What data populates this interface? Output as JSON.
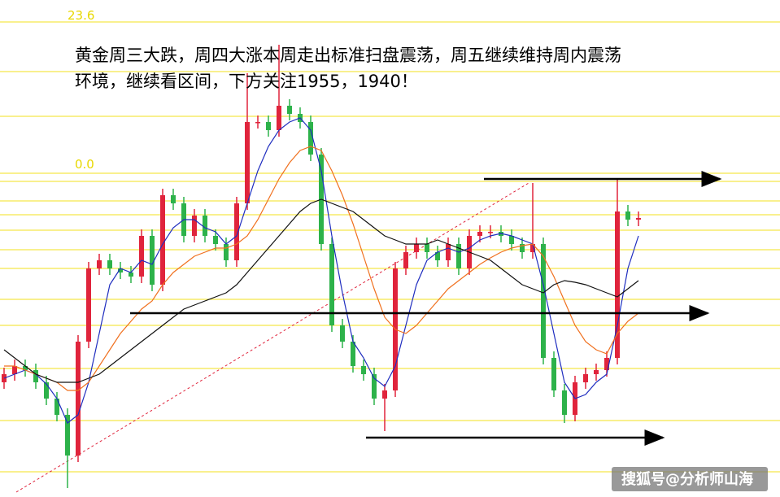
{
  "chart_data": {
    "type": "candlestick",
    "annotation_lines": [
      "黄金周三大跌，周四大涨本周走出标准扫盘震荡，周五继续维持周内震荡",
      "环境，继续看区间，下方关注1955，1940！"
    ],
    "fib_labels": [
      "23.6",
      "0.0"
    ],
    "watermark": "搜狐号@分析师山海",
    "ylim": [
      1931.9,
      1993
    ],
    "up_color": "#e0243c",
    "down_color": "#2db24a",
    "level_color": "#f5e84a",
    "levels": [
      1990.3,
      1984.2,
      1978.7,
      1971.7,
      1970.7,
      1968.3,
      1966.6,
      1964.7,
      1962.3,
      1960.0,
      1956.2,
      1953.0,
      1947.7,
      1941.3,
      1935.0
    ],
    "arrow_levels": [
      1971.0,
      1954.5,
      1939.2
    ],
    "open": [
      1946.0,
      1947.0,
      1948.0,
      1947.5,
      1946.0,
      1944.0,
      1942.0,
      1937.0,
      1951.0,
      1960.0,
      1961.0,
      1960.0,
      1959.5,
      1959.0,
      1964.0,
      1958.0,
      1969.0,
      1968.0,
      1964.0,
      1966.5,
      1964.0,
      1963.0,
      1961.0,
      1968.0,
      1978.0,
      1978.0,
      1977.0,
      1980.0,
      1979.0,
      1978.0,
      1974.0,
      1963.0,
      1953.0,
      1951.0,
      1948.0,
      1947.0,
      1944.0,
      1945.0,
      1960.0,
      1962.0,
      1963.0,
      1962.0,
      1961.0,
      1963.0,
      1960.0,
      1964.0,
      1964.5,
      1964.5,
      1964.0,
      1963.0,
      1962.0,
      1963.0,
      1949.0,
      1945.0,
      1942.0,
      1946.0,
      1947.0,
      1947.5,
      1949.0,
      1967.0,
      1966.0
    ],
    "high": [
      1947.8,
      1948.8,
      1948.8,
      1948.3,
      1946.8,
      1944.8,
      1942.8,
      1951.8,
      1960.8,
      1961.8,
      1961.8,
      1960.8,
      1960.3,
      1964.8,
      1964.8,
      1969.8,
      1969.8,
      1968.8,
      1967.3,
      1967.3,
      1964.8,
      1963.8,
      1968.8,
      1984.0,
      1978.8,
      1978.8,
      1987.5,
      1980.8,
      1979.8,
      1978.8,
      1974.8,
      1963.8,
      1953.8,
      1951.8,
      1948.8,
      1947.8,
      1945.8,
      1960.8,
      1962.8,
      1963.8,
      1963.8,
      1962.8,
      1963.8,
      1963.8,
      1964.8,
      1965.3,
      1965.3,
      1965.3,
      1964.8,
      1963.8,
      1970.5,
      1963.8,
      1949.8,
      1945.8,
      1946.8,
      1947.8,
      1948.3,
      1949.8,
      1971.0,
      1967.8,
      1967.0
    ],
    "low": [
      1945.2,
      1946.2,
      1946.7,
      1945.2,
      1943.2,
      1941.2,
      1933.0,
      1936.2,
      1950.2,
      1959.2,
      1959.2,
      1958.7,
      1958.2,
      1958.2,
      1957.2,
      1957.2,
      1967.2,
      1963.2,
      1963.2,
      1963.2,
      1962.2,
      1960.2,
      1960.2,
      1967.2,
      1977.2,
      1976.2,
      1976.2,
      1978.2,
      1977.2,
      1973.2,
      1962.2,
      1952.2,
      1950.2,
      1947.2,
      1946.2,
      1943.2,
      1940.0,
      1944.2,
      1959.2,
      1961.2,
      1961.2,
      1960.2,
      1960.2,
      1959.2,
      1959.2,
      1963.2,
      1963.7,
      1963.2,
      1962.2,
      1961.2,
      1961.2,
      1948.2,
      1944.2,
      1941.0,
      1941.2,
      1945.2,
      1946.2,
      1946.7,
      1948.2,
      1965.2,
      1965.2
    ],
    "close": [
      1947.0,
      1948.0,
      1947.5,
      1946.0,
      1944.0,
      1942.0,
      1937.0,
      1951.0,
      1960.0,
      1961.0,
      1960.0,
      1959.5,
      1959.0,
      1964.0,
      1958.0,
      1969.0,
      1968.0,
      1964.0,
      1966.5,
      1964.0,
      1963.0,
      1961.0,
      1968.0,
      1978.0,
      1978.0,
      1977.0,
      1980.0,
      1979.0,
      1978.0,
      1974.0,
      1963.0,
      1953.0,
      1951.0,
      1948.0,
      1947.0,
      1944.0,
      1945.0,
      1960.0,
      1962.0,
      1963.0,
      1962.0,
      1961.0,
      1963.0,
      1960.0,
      1964.0,
      1964.5,
      1964.5,
      1964.0,
      1963.0,
      1962.0,
      1963.0,
      1949.0,
      1945.0,
      1942.0,
      1946.0,
      1947.0,
      1947.5,
      1949.0,
      1967.0,
      1966.0,
      1966.2
    ],
    "series": [
      {
        "color": "#1f2dbf",
        "values": [
          1946.5,
          1947,
          1947.5,
          1947,
          1945.8,
          1944,
          1941,
          1942,
          1946,
          1952,
          1958,
          1960,
          1959.5,
          1961,
          1960.5,
          1963,
          1965,
          1966,
          1966,
          1965,
          1964.5,
          1963,
          1964,
          1968,
          1972,
          1975,
          1977,
          1978,
          1978.5,
          1977,
          1972,
          1964,
          1957,
          1951,
          1949,
          1946.5,
          1945.5,
          1948,
          1953,
          1958,
          1961,
          1962,
          1962.5,
          1962,
          1962.5,
          1963.5,
          1964,
          1964.3,
          1964,
          1963.5,
          1963,
          1958,
          1952,
          1946,
          1944,
          1944.5,
          1946,
          1947,
          1953,
          1960,
          1964
        ]
      },
      {
        "color": "#f0701e",
        "values": [
          1948,
          1948,
          1947.5,
          1947,
          1946.5,
          1946,
          1945,
          1945,
          1946,
          1948,
          1950,
          1952,
          1953.5,
          1955,
          1956,
          1958,
          1959.5,
          1960.5,
          1961.5,
          1962,
          1962.5,
          1962.5,
          1963,
          1964,
          1966,
          1968.5,
          1971,
          1973,
          1974.5,
          1975,
          1974.5,
          1972,
          1969,
          1965.5,
          1961.5,
          1957.5,
          1954,
          1952.5,
          1952,
          1953,
          1954.5,
          1956,
          1957.5,
          1958.5,
          1959.5,
          1960.5,
          1961.3,
          1962,
          1962.5,
          1962.8,
          1963,
          1961.5,
          1959,
          1956,
          1953,
          1951,
          1950,
          1949.5,
          1952,
          1953.5,
          1954.5
        ]
      },
      {
        "color": "#111111",
        "values": [
          1950,
          1949,
          1948,
          1947,
          1946.5,
          1946,
          1946,
          1946,
          1946.5,
          1947,
          1948,
          1949,
          1950,
          1951,
          1952,
          1953,
          1954,
          1955,
          1955.5,
          1956,
          1956.5,
          1957,
          1958,
          1959.5,
          1961,
          1962.5,
          1964,
          1965.5,
          1967,
          1968,
          1968.5,
          1968,
          1967.5,
          1967,
          1966,
          1965,
          1964,
          1963.5,
          1963,
          1963,
          1963,
          1963.5,
          1963,
          1962.5,
          1962,
          1961.5,
          1961,
          1960,
          1959,
          1958,
          1957.5,
          1957,
          1958,
          1958.5,
          1958.3,
          1958,
          1957.5,
          1957,
          1956.5,
          1957.5,
          1958.5
        ]
      }
    ]
  }
}
